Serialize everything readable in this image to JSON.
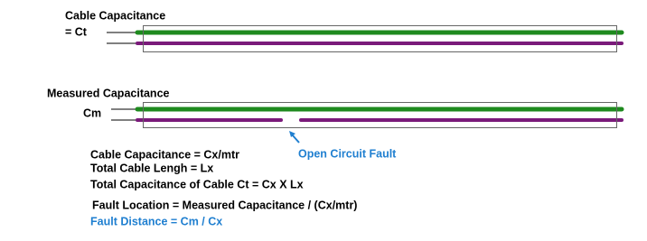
{
  "cable_section": {
    "title": "Cable Capacitance",
    "symbol": "= Ct"
  },
  "measured_section": {
    "title": "Measured Capacitance",
    "symbol": "Cm"
  },
  "fault_label": "Open Circuit Fault",
  "formulas": [
    "Cable Capacitance = Cx/mtr",
    "Total Cable Lengh = Lx",
    "Total Capacitance of Cable Ct = Cx X Lx",
    "Fault Location = Measured Capacitance / (Cx/mtr)",
    "Fault Distance = Cm / Cx"
  ]
}
